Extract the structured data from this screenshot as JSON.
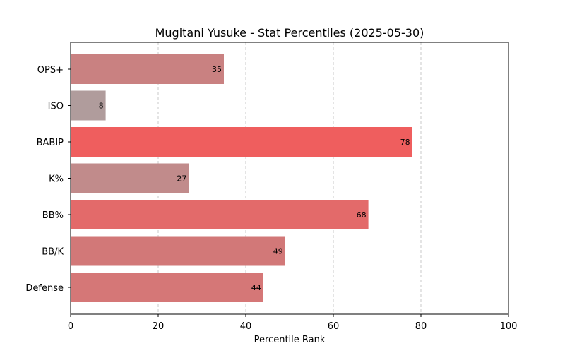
{
  "chart_data": {
    "type": "bar",
    "orientation": "horizontal",
    "title": "Mugitani Yusuke - Stat Percentiles (2025-05-30)",
    "xlabel": "Percentile Rank",
    "ylabel": "",
    "xlim": [
      0,
      100
    ],
    "xticks": [
      0,
      20,
      40,
      60,
      80,
      100
    ],
    "grid": "x-dashed",
    "categories": [
      "OPS+",
      "ISO",
      "BABIP",
      "K%",
      "BB%",
      "BB/K",
      "Defense"
    ],
    "values": [
      35,
      8,
      78,
      27,
      68,
      49,
      44
    ],
    "colors": [
      "#c98181",
      "#b09c9c",
      "#ef5e5e",
      "#c18b8b",
      "#e36a6a",
      "#d27878",
      "#d57777"
    ]
  }
}
